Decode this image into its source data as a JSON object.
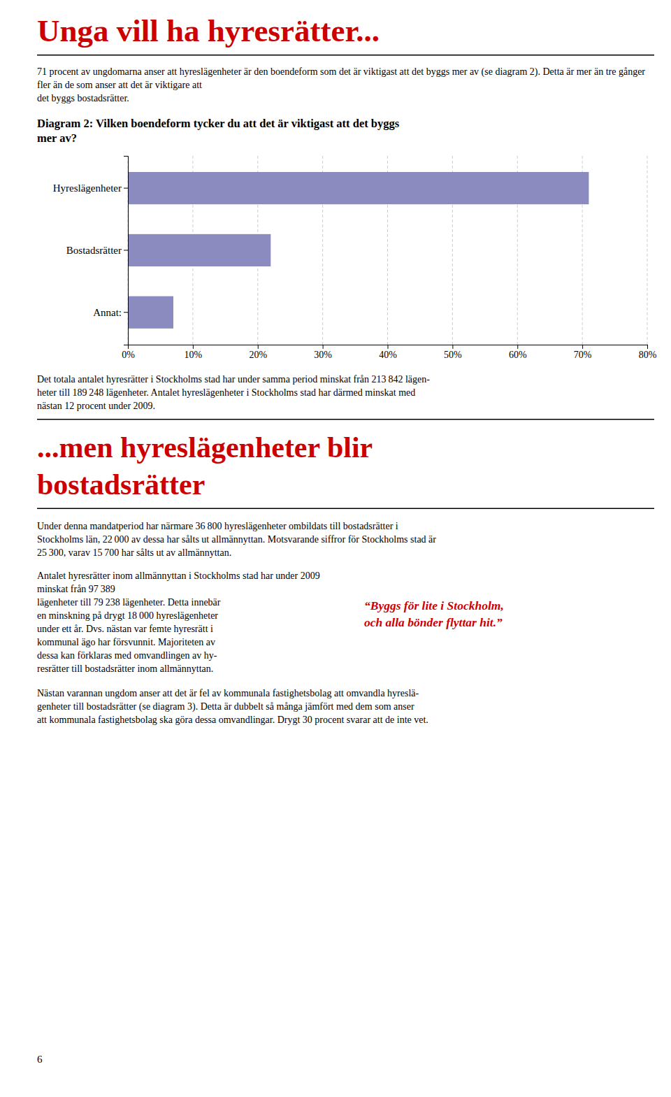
{
  "title": "Unga vill ha hyresrätter...",
  "title_color": "#cc0000",
  "intro_text": "71 procent av ungdomarna anser att hyreslägenheter är den boendeform som det är viktigast att det byggs mer av (se diagram 2). Detta är mer än tre gånger fler än de som anser att det är viktigare att\ndet byggs bostadsrätter.",
  "chart_data": {
    "type": "bar",
    "orientation": "horizontal",
    "title": "Diagram 2: Vilken boendeform tycker du att det är viktigast att det byggs\nmer av?",
    "categories": [
      "Hyreslägenheter",
      "Bostadsrätter",
      "Annat:"
    ],
    "values": [
      71,
      22,
      7
    ],
    "color": "#8b8bbf",
    "xlim": [
      0,
      80
    ],
    "xticks": [
      {
        "value": 0,
        "label": "0%"
      },
      {
        "value": 10,
        "label": "10%"
      },
      {
        "value": 20,
        "label": "20%"
      },
      {
        "value": 30,
        "label": "30%"
      },
      {
        "value": 40,
        "label": "40%"
      },
      {
        "value": 50,
        "label": "50%"
      },
      {
        "value": 60,
        "label": "60%"
      },
      {
        "value": 70,
        "label": "70%"
      },
      {
        "value": 80,
        "label": "80%"
      }
    ],
    "grid": true
  },
  "text_below_chart": "Det totala antalet hyresrätter i Stockholms stad har under samma period minskat från 213 842 lägen-\nheter till 189 248 lägenheter. Antalet hyreslägenheter i Stockholms stad har därmed minskat med\nnästan 12 procent under 2009.",
  "section_title": [
    "...men hyreslägenheter blir",
    "bostadsrätter"
  ],
  "section_title_color": "#cc0000",
  "para2": "Under denna mandatperiod har närmare 36 800 hyreslägenheter ombildats till bostadsrätter i\nStockholms län, 22 000 av dessa har sålts ut allmännyttan. Motsvarande siffror för Stockholms stad är\n25 300, varav 15 700 har sålts ut av allmännyttan.",
  "para3": "Antalet hyresrätter inom allmännyttan i Stockholms stad har under 2009 minskat från 97 389\nlägenheter till 79 238 lägenheter. Detta innebär\nen minskning på drygt 18 000 hyreslägenheter\nunder ett år. Dvs. nästan var femte hyresrätt i\nkommunal ägo har försvunnit. Majoriteten av\ndessa kan förklaras med omvandlingen av hy-\nresrätter till bostadsrätter inom allmännyttan.",
  "quote": "“Byggs för lite i Stockholm,\noch alla bönder flyttar hit.”",
  "quote_color": "#cc0000",
  "para4": "Nästan varannan ungdom anser att det är fel av kommunala fastighetsbolag att omvandla hyreslä-\ngenheter till bostadsrätter (se diagram 3). Detta är dubbelt så många jämfört med dem som anser\natt kommunala fastighetsbolag ska göra dessa omvandlingar. Drygt 30 procent svarar att de inte vet.",
  "footer": "6"
}
